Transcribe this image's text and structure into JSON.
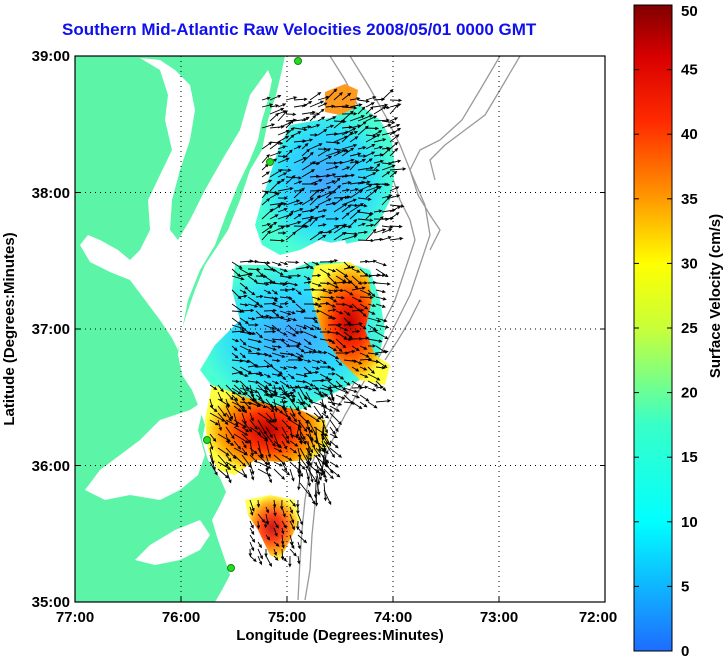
{
  "title": "Southern Mid-Atlantic Raw Velocities 2008/05/01 0000 GMT",
  "xlabel": "Longitude (Degrees:Minutes)",
  "ylabel": "Latitude (Degrees:Minutes)",
  "colorbar_label": "Surface Velocity (cm/s)",
  "x_ticks": [
    "77:00",
    "76:00",
    "75:00",
    "74:00",
    "73:00",
    "72:00"
  ],
  "y_ticks": [
    "39:00",
    "38:00",
    "37:00",
    "36:00",
    "35:00"
  ],
  "colorbar_ticks": [
    "50",
    "45",
    "40",
    "35",
    "30",
    "25",
    "20",
    "15",
    "10",
    "5",
    "0"
  ],
  "colors": {
    "land": "#5cf5a8",
    "title": "#1010ee",
    "arrow": "#000000",
    "contour": "#9a9a9a",
    "station": "#22dd22"
  },
  "map": {
    "lon_range": [
      -77,
      -72
    ],
    "lat_range": [
      35,
      39
    ],
    "grid": true,
    "colormap": "jet",
    "value_range_cm_s": [
      0,
      50
    ]
  }
}
